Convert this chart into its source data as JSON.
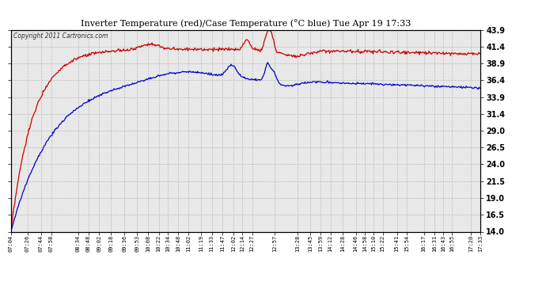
{
  "title": "Inverter Temperature (red)/Case Temperature (°C blue) Tue Apr 19 17:33",
  "copyright": "Copyright 2011 Cartronics.com",
  "ylim": [
    14.0,
    43.9
  ],
  "yticks": [
    14.0,
    16.5,
    19.0,
    21.5,
    24.0,
    26.5,
    29.0,
    31.4,
    33.9,
    36.4,
    38.9,
    41.4,
    43.9
  ],
  "bg_color": "#ffffff",
  "plot_bg": "#e8e8e8",
  "grid_color": "#bbbbbb",
  "line_color_red": "#cc0000",
  "line_color_blue": "#0000cc",
  "xtick_labels": [
    "07:04",
    "07:26",
    "07:44",
    "07:58",
    "08:34",
    "08:48",
    "09:02",
    "09:18",
    "09:36",
    "09:53",
    "10:08",
    "10:22",
    "10:34",
    "10:48",
    "11:02",
    "11:19",
    "11:33",
    "11:47",
    "12:02",
    "12:14",
    "12:27",
    "12:57",
    "13:28",
    "13:45",
    "13:59",
    "14:12",
    "14:28",
    "14:46",
    "14:58",
    "15:10",
    "15:22",
    "15:41",
    "15:54",
    "16:17",
    "16:31",
    "16:43",
    "16:55",
    "17:20",
    "17:33"
  ]
}
